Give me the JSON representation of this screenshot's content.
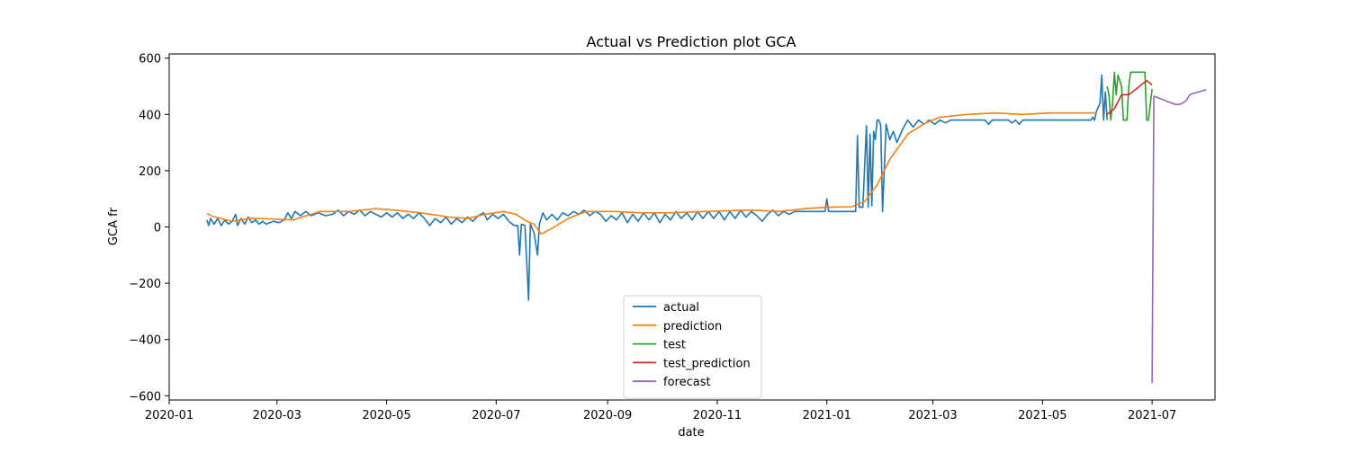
{
  "chart_data": {
    "type": "line",
    "title": "Actual vs Prediction plot GCA",
    "xlabel": "date",
    "ylabel": "GCA fr",
    "xlim": [
      "2020-01-01",
      "2021-08-05"
    ],
    "ylim": [
      -615,
      615
    ],
    "x_ticks": [
      "2020-01",
      "2020-03",
      "2020-05",
      "2020-07",
      "2020-09",
      "2020-11",
      "2021-01",
      "2021-03",
      "2021-05",
      "2021-07"
    ],
    "x_tick_dates": [
      "2020-01-01",
      "2020-03-01",
      "2020-05-01",
      "2020-07-01",
      "2020-09-01",
      "2020-11-01",
      "2021-01-01",
      "2021-03-01",
      "2021-05-01",
      "2021-07-01"
    ],
    "y_ticks": [
      -600,
      -400,
      -200,
      0,
      200,
      400,
      600
    ],
    "y_tick_labels": [
      "−600",
      "−400",
      "−200",
      "0",
      "200",
      "400",
      "600"
    ],
    "grid": false,
    "legend_position": "lower-center",
    "series": [
      {
        "name": "actual",
        "color": "#1f77b4",
        "points": [
          [
            "2020-01-22",
            25
          ],
          [
            "2020-01-23",
            5
          ],
          [
            "2020-01-24",
            30
          ],
          [
            "2020-01-26",
            10
          ],
          [
            "2020-01-28",
            30
          ],
          [
            "2020-01-30",
            5
          ],
          [
            "2020-02-01",
            25
          ],
          [
            "2020-02-03",
            10
          ],
          [
            "2020-02-05",
            20
          ],
          [
            "2020-02-07",
            45
          ],
          [
            "2020-02-08",
            5
          ],
          [
            "2020-02-10",
            30
          ],
          [
            "2020-02-12",
            10
          ],
          [
            "2020-02-14",
            35
          ],
          [
            "2020-02-16",
            15
          ],
          [
            "2020-02-18",
            25
          ],
          [
            "2020-02-20",
            10
          ],
          [
            "2020-02-22",
            20
          ],
          [
            "2020-02-24",
            10
          ],
          [
            "2020-02-26",
            15
          ],
          [
            "2020-02-28",
            20
          ],
          [
            "2020-03-02",
            15
          ],
          [
            "2020-03-05",
            25
          ],
          [
            "2020-03-07",
            50
          ],
          [
            "2020-03-09",
            30
          ],
          [
            "2020-03-11",
            55
          ],
          [
            "2020-03-14",
            40
          ],
          [
            "2020-03-17",
            55
          ],
          [
            "2020-03-20",
            40
          ],
          [
            "2020-03-24",
            50
          ],
          [
            "2020-03-28",
            40
          ],
          [
            "2020-04-01",
            45
          ],
          [
            "2020-04-04",
            60
          ],
          [
            "2020-04-07",
            40
          ],
          [
            "2020-04-10",
            55
          ],
          [
            "2020-04-13",
            45
          ],
          [
            "2020-04-16",
            60
          ],
          [
            "2020-04-19",
            40
          ],
          [
            "2020-04-22",
            55
          ],
          [
            "2020-04-25",
            45
          ],
          [
            "2020-04-28",
            35
          ],
          [
            "2020-05-01",
            50
          ],
          [
            "2020-05-04",
            35
          ],
          [
            "2020-05-07",
            50
          ],
          [
            "2020-05-10",
            30
          ],
          [
            "2020-05-13",
            45
          ],
          [
            "2020-05-16",
            30
          ],
          [
            "2020-05-19",
            50
          ],
          [
            "2020-05-22",
            30
          ],
          [
            "2020-05-25",
            5
          ],
          [
            "2020-05-28",
            30
          ],
          [
            "2020-05-31",
            15
          ],
          [
            "2020-06-03",
            35
          ],
          [
            "2020-06-06",
            10
          ],
          [
            "2020-06-09",
            30
          ],
          [
            "2020-06-12",
            15
          ],
          [
            "2020-06-15",
            35
          ],
          [
            "2020-06-18",
            20
          ],
          [
            "2020-06-21",
            40
          ],
          [
            "2020-06-24",
            50
          ],
          [
            "2020-06-26",
            25
          ],
          [
            "2020-06-29",
            45
          ],
          [
            "2020-07-02",
            30
          ],
          [
            "2020-07-05",
            45
          ],
          [
            "2020-07-08",
            20
          ],
          [
            "2020-07-11",
            5
          ],
          [
            "2020-07-13",
            5
          ],
          [
            "2020-07-14",
            -100
          ],
          [
            "2020-07-15",
            10
          ],
          [
            "2020-07-17",
            5
          ],
          [
            "2020-07-19",
            -260
          ],
          [
            "2020-07-20",
            10
          ],
          [
            "2020-07-22",
            -20
          ],
          [
            "2020-07-24",
            -100
          ],
          [
            "2020-07-25",
            10
          ],
          [
            "2020-07-27",
            50
          ],
          [
            "2020-07-29",
            25
          ],
          [
            "2020-08-01",
            45
          ],
          [
            "2020-08-04",
            25
          ],
          [
            "2020-08-07",
            50
          ],
          [
            "2020-08-10",
            40
          ],
          [
            "2020-08-13",
            55
          ],
          [
            "2020-08-16",
            45
          ],
          [
            "2020-08-19",
            60
          ],
          [
            "2020-08-22",
            40
          ],
          [
            "2020-08-25",
            55
          ],
          [
            "2020-08-28",
            45
          ],
          [
            "2020-08-31",
            20
          ],
          [
            "2020-09-03",
            40
          ],
          [
            "2020-09-06",
            25
          ],
          [
            "2020-09-09",
            50
          ],
          [
            "2020-09-12",
            15
          ],
          [
            "2020-09-15",
            45
          ],
          [
            "2020-09-18",
            20
          ],
          [
            "2020-09-21",
            50
          ],
          [
            "2020-09-24",
            25
          ],
          [
            "2020-09-27",
            50
          ],
          [
            "2020-09-30",
            15
          ],
          [
            "2020-10-03",
            45
          ],
          [
            "2020-10-06",
            25
          ],
          [
            "2020-10-09",
            55
          ],
          [
            "2020-10-12",
            30
          ],
          [
            "2020-10-15",
            50
          ],
          [
            "2020-10-18",
            25
          ],
          [
            "2020-10-21",
            55
          ],
          [
            "2020-10-24",
            30
          ],
          [
            "2020-10-27",
            55
          ],
          [
            "2020-10-30",
            30
          ],
          [
            "2020-11-02",
            55
          ],
          [
            "2020-11-05",
            25
          ],
          [
            "2020-11-08",
            55
          ],
          [
            "2020-11-11",
            30
          ],
          [
            "2020-11-14",
            60
          ],
          [
            "2020-11-17",
            35
          ],
          [
            "2020-11-20",
            55
          ],
          [
            "2020-11-23",
            40
          ],
          [
            "2020-11-26",
            20
          ],
          [
            "2020-11-29",
            45
          ],
          [
            "2020-12-02",
            60
          ],
          [
            "2020-12-05",
            40
          ],
          [
            "2020-12-08",
            55
          ],
          [
            "2020-12-11",
            45
          ],
          [
            "2020-12-14",
            55
          ],
          [
            "2020-12-20",
            55
          ],
          [
            "2020-12-31",
            55
          ],
          [
            "2021-01-01",
            100
          ],
          [
            "2021-01-02",
            55
          ],
          [
            "2021-01-10",
            55
          ],
          [
            "2021-01-15",
            55
          ],
          [
            "2021-01-17",
            55
          ],
          [
            "2021-01-18",
            325
          ],
          [
            "2021-01-19",
            70
          ],
          [
            "2021-01-21",
            70
          ],
          [
            "2021-01-23",
            360
          ],
          [
            "2021-01-24",
            70
          ],
          [
            "2021-01-25",
            330
          ],
          [
            "2021-01-26",
            75
          ],
          [
            "2021-01-27",
            340
          ],
          [
            "2021-01-28",
            310
          ],
          [
            "2021-01-29",
            380
          ],
          [
            "2021-01-30",
            380
          ],
          [
            "2021-01-31",
            360
          ],
          [
            "2021-02-01",
            55
          ],
          [
            "2021-02-03",
            365
          ],
          [
            "2021-02-05",
            310
          ],
          [
            "2021-02-07",
            340
          ],
          [
            "2021-02-09",
            300
          ],
          [
            "2021-02-12",
            345
          ],
          [
            "2021-02-15",
            380
          ],
          [
            "2021-02-18",
            355
          ],
          [
            "2021-02-21",
            380
          ],
          [
            "2021-02-24",
            365
          ],
          [
            "2021-02-27",
            380
          ],
          [
            "2021-03-02",
            365
          ],
          [
            "2021-03-05",
            380
          ],
          [
            "2021-03-08",
            370
          ],
          [
            "2021-03-11",
            380
          ],
          [
            "2021-03-30",
            380
          ],
          [
            "2021-04-01",
            365
          ],
          [
            "2021-04-03",
            380
          ],
          [
            "2021-04-12",
            380
          ],
          [
            "2021-04-14",
            370
          ],
          [
            "2021-04-16",
            380
          ],
          [
            "2021-04-18",
            365
          ],
          [
            "2021-04-20",
            380
          ],
          [
            "2021-05-28",
            380
          ],
          [
            "2021-05-29",
            390
          ],
          [
            "2021-05-30",
            380
          ],
          [
            "2021-05-31",
            410
          ],
          [
            "2021-06-02",
            440
          ],
          [
            "2021-06-03",
            540
          ],
          [
            "2021-06-04",
            380
          ],
          [
            "2021-06-05",
            480
          ],
          [
            "2021-06-06",
            380
          ]
        ]
      },
      {
        "name": "prediction",
        "color": "#ff7f0e",
        "points": [
          [
            "2020-01-22",
            48
          ],
          [
            "2020-01-25",
            38
          ],
          [
            "2020-01-30",
            30
          ],
          [
            "2020-02-05",
            20
          ],
          [
            "2020-02-10",
            25
          ],
          [
            "2020-02-15",
            30
          ],
          [
            "2020-02-20",
            30
          ],
          [
            "2020-03-01",
            27
          ],
          [
            "2020-03-10",
            25
          ],
          [
            "2020-03-15",
            35
          ],
          [
            "2020-03-25",
            55
          ],
          [
            "2020-04-10",
            55
          ],
          [
            "2020-04-25",
            65
          ],
          [
            "2020-05-05",
            60
          ],
          [
            "2020-05-20",
            50
          ],
          [
            "2020-06-05",
            35
          ],
          [
            "2020-06-15",
            30
          ],
          [
            "2020-06-25",
            45
          ],
          [
            "2020-07-05",
            55
          ],
          [
            "2020-07-12",
            45
          ],
          [
            "2020-07-18",
            20
          ],
          [
            "2020-07-22",
            10
          ],
          [
            "2020-07-26",
            -25
          ],
          [
            "2020-08-01",
            -5
          ],
          [
            "2020-08-10",
            30
          ],
          [
            "2020-08-20",
            55
          ],
          [
            "2020-09-05",
            55
          ],
          [
            "2020-09-20",
            50
          ],
          [
            "2020-10-05",
            50
          ],
          [
            "2020-10-25",
            55
          ],
          [
            "2020-11-20",
            60
          ],
          [
            "2020-12-05",
            55
          ],
          [
            "2020-12-20",
            65
          ],
          [
            "2021-01-01",
            70
          ],
          [
            "2021-01-15",
            72
          ],
          [
            "2021-01-22",
            90
          ],
          [
            "2021-01-29",
            150
          ],
          [
            "2021-02-05",
            240
          ],
          [
            "2021-02-15",
            330
          ],
          [
            "2021-02-25",
            370
          ],
          [
            "2021-03-05",
            390
          ],
          [
            "2021-03-20",
            400
          ],
          [
            "2021-04-05",
            405
          ],
          [
            "2021-04-20",
            400
          ],
          [
            "2021-05-05",
            405
          ],
          [
            "2021-05-31",
            405
          ]
        ]
      },
      {
        "name": "test",
        "color": "#2ca02c",
        "points": [
          [
            "2021-06-06",
            500
          ],
          [
            "2021-06-07",
            470
          ],
          [
            "2021-06-08",
            380
          ],
          [
            "2021-06-09",
            440
          ],
          [
            "2021-06-10",
            550
          ],
          [
            "2021-06-11",
            470
          ],
          [
            "2021-06-12",
            540
          ],
          [
            "2021-06-14",
            500
          ],
          [
            "2021-06-15",
            380
          ],
          [
            "2021-06-17",
            380
          ],
          [
            "2021-06-18",
            500
          ],
          [
            "2021-06-19",
            550
          ],
          [
            "2021-06-25",
            550
          ],
          [
            "2021-06-27",
            550
          ],
          [
            "2021-06-28",
            380
          ],
          [
            "2021-06-29",
            380
          ],
          [
            "2021-07-01",
            490
          ]
        ]
      },
      {
        "name": "test_prediction",
        "color": "#d62728",
        "points": [
          [
            "2021-06-06",
            400
          ],
          [
            "2021-06-10",
            420
          ],
          [
            "2021-06-14",
            470
          ],
          [
            "2021-06-18",
            470
          ],
          [
            "2021-06-22",
            490
          ],
          [
            "2021-06-26",
            510
          ],
          [
            "2021-06-28",
            520
          ],
          [
            "2021-07-01",
            505
          ]
        ]
      },
      {
        "name": "forecast",
        "color": "#9467bd",
        "points": [
          [
            "2021-07-01",
            -555
          ],
          [
            "2021-07-02",
            465
          ],
          [
            "2021-07-04",
            460
          ],
          [
            "2021-07-08",
            450
          ],
          [
            "2021-07-12",
            440
          ],
          [
            "2021-07-14",
            435
          ],
          [
            "2021-07-16",
            435
          ],
          [
            "2021-07-18",
            440
          ],
          [
            "2021-07-20",
            450
          ],
          [
            "2021-07-22",
            470
          ],
          [
            "2021-07-24",
            475
          ],
          [
            "2021-07-26",
            478
          ],
          [
            "2021-07-28",
            482
          ],
          [
            "2021-07-31",
            488
          ]
        ]
      }
    ]
  }
}
